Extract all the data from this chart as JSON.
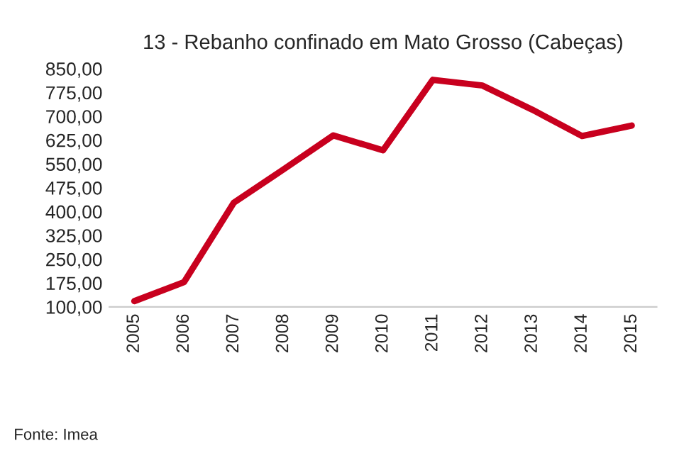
{
  "chart_data": {
    "type": "line",
    "title": "13 - Rebanho confinado em Mato Grosso (Cabeças)",
    "categories": [
      "2005",
      "2006",
      "2007",
      "2008",
      "2009",
      "2010",
      "2011",
      "2012",
      "2013",
      "2014",
      "2015"
    ],
    "series": [
      {
        "color": "#c8001e",
        "values": [
          118,
          178,
          428,
          533,
          640,
          593,
          815,
          797,
          721,
          638,
          671
        ]
      }
    ],
    "ylim": [
      100,
      850
    ],
    "yticks": [
      {
        "value": 100,
        "label": "100,00"
      },
      {
        "value": 175,
        "label": "175,00"
      },
      {
        "value": 250,
        "label": "250,00"
      },
      {
        "value": 325,
        "label": "325,00"
      },
      {
        "value": 400,
        "label": "400,00"
      },
      {
        "value": 475,
        "label": "475,00"
      },
      {
        "value": 550,
        "label": "550,00"
      },
      {
        "value": 625,
        "label": "625,00"
      },
      {
        "value": 700,
        "label": "700,00"
      },
      {
        "value": 775,
        "label": "775,00"
      },
      {
        "value": 850,
        "label": "850,00"
      }
    ],
    "grid": false,
    "marker": "none",
    "line_style": "solid",
    "annotations": [
      "Fonte: Imea"
    ]
  }
}
